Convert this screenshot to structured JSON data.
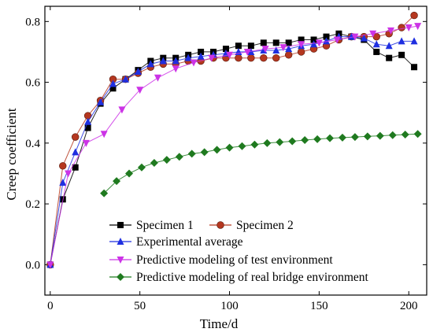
{
  "chart_data": {
    "type": "line",
    "xlabel": "Time/d",
    "ylabel": "Creep coefficient",
    "xlim": [
      -3,
      210
    ],
    "ylim": [
      -0.1,
      0.85
    ],
    "xticks": [
      0,
      50,
      100,
      150,
      200
    ],
    "yticks": [
      0.0,
      0.2,
      0.4,
      0.6,
      0.8
    ],
    "tick_labels": {
      "x": [
        "0",
        "50",
        "100",
        "150",
        "200"
      ],
      "y": [
        "0.0",
        "0.2",
        "0.4",
        "0.6",
        "0.8"
      ]
    },
    "legend_position": "bottom-right",
    "series": [
      {
        "name": "Specimen 1",
        "color": "#000000",
        "marker": "square",
        "x": [
          0,
          7,
          14,
          21,
          28,
          35,
          42,
          49,
          56,
          63,
          70,
          77,
          84,
          91,
          98,
          105,
          112,
          119,
          126,
          133,
          140,
          147,
          154,
          161,
          168,
          175,
          182,
          189,
          196,
          203
        ],
        "y": [
          0.0,
          0.215,
          0.32,
          0.45,
          0.53,
          0.58,
          0.61,
          0.64,
          0.67,
          0.68,
          0.68,
          0.69,
          0.7,
          0.7,
          0.71,
          0.72,
          0.72,
          0.73,
          0.73,
          0.73,
          0.74,
          0.74,
          0.75,
          0.76,
          0.75,
          0.74,
          0.7,
          0.68,
          0.69,
          0.65
        ]
      },
      {
        "name": "Specimen 2",
        "color": "#b5371f",
        "marker": "circle",
        "x": [
          0,
          7,
          14,
          21,
          28,
          35,
          42,
          49,
          56,
          63,
          70,
          77,
          84,
          91,
          98,
          105,
          112,
          119,
          126,
          133,
          140,
          147,
          154,
          161,
          168,
          175,
          182,
          189,
          196,
          203
        ],
        "y": [
          0.0,
          0.325,
          0.42,
          0.49,
          0.54,
          0.61,
          0.61,
          0.63,
          0.65,
          0.66,
          0.66,
          0.67,
          0.67,
          0.68,
          0.68,
          0.68,
          0.68,
          0.68,
          0.68,
          0.69,
          0.7,
          0.71,
          0.72,
          0.74,
          0.75,
          0.75,
          0.75,
          0.76,
          0.78,
          0.82
        ]
      },
      {
        "name": "Experimental average",
        "color": "#1f2fe0",
        "marker": "triangle-up",
        "x": [
          0,
          7,
          14,
          21,
          28,
          35,
          42,
          49,
          56,
          63,
          70,
          77,
          84,
          91,
          98,
          105,
          112,
          119,
          126,
          133,
          140,
          147,
          154,
          161,
          168,
          175,
          182,
          189,
          196,
          203
        ],
        "y": [
          0.0,
          0.27,
          0.37,
          0.47,
          0.535,
          0.595,
          0.61,
          0.635,
          0.66,
          0.67,
          0.67,
          0.68,
          0.685,
          0.69,
          0.695,
          0.7,
          0.7,
          0.705,
          0.705,
          0.71,
          0.72,
          0.725,
          0.735,
          0.75,
          0.75,
          0.745,
          0.725,
          0.72,
          0.735,
          0.735
        ]
      },
      {
        "name": "Predictive modeling of test environment",
        "color": "#cc33e6",
        "marker": "triangle-down",
        "x": [
          0,
          10,
          20,
          30,
          40,
          50,
          60,
          70,
          80,
          90,
          100,
          110,
          120,
          130,
          140,
          150,
          160,
          170,
          180,
          190,
          200,
          205
        ],
        "y": [
          0.0,
          0.3,
          0.4,
          0.43,
          0.51,
          0.575,
          0.615,
          0.645,
          0.665,
          0.68,
          0.69,
          0.7,
          0.71,
          0.715,
          0.725,
          0.73,
          0.74,
          0.75,
          0.76,
          0.77,
          0.78,
          0.785
        ]
      },
      {
        "name": "Predictive modeling of real bridge environment",
        "color": "#1f7a1f",
        "marker": "diamond",
        "x": [
          30,
          37,
          44,
          51,
          58,
          65,
          72,
          79,
          86,
          93,
          100,
          107,
          114,
          121,
          128,
          135,
          142,
          149,
          156,
          163,
          170,
          177,
          184,
          191,
          198,
          205
        ],
        "y": [
          0.235,
          0.275,
          0.3,
          0.32,
          0.335,
          0.345,
          0.355,
          0.365,
          0.37,
          0.378,
          0.385,
          0.39,
          0.395,
          0.4,
          0.403,
          0.406,
          0.41,
          0.413,
          0.416,
          0.418,
          0.42,
          0.422,
          0.424,
          0.426,
          0.428,
          0.43
        ]
      }
    ]
  }
}
